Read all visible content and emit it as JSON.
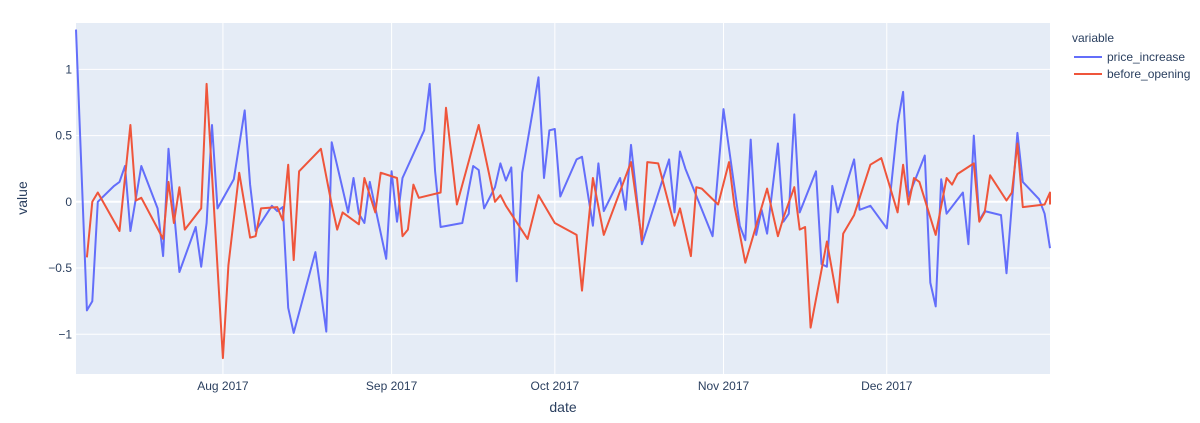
{
  "chart_data": {
    "type": "line",
    "xlabel": "date",
    "ylabel": "value",
    "x_range": [
      "2017-07-05",
      "2017-12-31"
    ],
    "ylim": [
      -1.3,
      1.35
    ],
    "x_ticks": [
      {
        "date": "2017-08-01",
        "label": "Aug 2017"
      },
      {
        "date": "2017-09-01",
        "label": "Sep 2017"
      },
      {
        "date": "2017-10-01",
        "label": "Oct 2017"
      },
      {
        "date": "2017-11-01",
        "label": "Nov 2017"
      },
      {
        "date": "2017-12-01",
        "label": "Dec 2017"
      }
    ],
    "y_ticks": [
      {
        "value": -1,
        "label": "−1"
      },
      {
        "value": -0.5,
        "label": "−0.5"
      },
      {
        "value": 0,
        "label": "0"
      },
      {
        "value": 0.5,
        "label": "0.5"
      },
      {
        "value": 1,
        "label": "1"
      }
    ],
    "grid": true,
    "legend": {
      "title": "variable",
      "position": "top-right"
    },
    "series": [
      {
        "name": "price_increase",
        "color": "#636efa",
        "points": [
          [
            "2017-07-05",
            1.3
          ],
          [
            "2017-07-07",
            -0.82
          ],
          [
            "2017-07-08",
            -0.75
          ],
          [
            "2017-07-09",
            0.0
          ],
          [
            "2017-07-12",
            0.12
          ],
          [
            "2017-07-13",
            0.15
          ],
          [
            "2017-07-14",
            0.27
          ],
          [
            "2017-07-15",
            -0.22
          ],
          [
            "2017-07-17",
            0.27
          ],
          [
            "2017-07-20",
            -0.05
          ],
          [
            "2017-07-21",
            -0.41
          ],
          [
            "2017-07-22",
            0.4
          ],
          [
            "2017-07-24",
            -0.53
          ],
          [
            "2017-07-27",
            -0.19
          ],
          [
            "2017-07-28",
            -0.49
          ],
          [
            "2017-07-29",
            -0.16
          ],
          [
            "2017-07-30",
            0.58
          ],
          [
            "2017-07-31",
            -0.05
          ],
          [
            "2017-08-03",
            0.17
          ],
          [
            "2017-08-05",
            0.69
          ],
          [
            "2017-08-06",
            0.13
          ],
          [
            "2017-08-07",
            -0.22
          ],
          [
            "2017-08-10",
            -0.03
          ],
          [
            "2017-08-11",
            -0.07
          ],
          [
            "2017-08-12",
            -0.04
          ],
          [
            "2017-08-13",
            -0.8
          ],
          [
            "2017-08-14",
            -0.99
          ],
          [
            "2017-08-18",
            -0.38
          ],
          [
            "2017-08-20",
            -0.98
          ],
          [
            "2017-08-21",
            0.45
          ],
          [
            "2017-08-24",
            -0.08
          ],
          [
            "2017-08-25",
            0.18
          ],
          [
            "2017-08-26",
            -0.09
          ],
          [
            "2017-08-27",
            -0.16
          ],
          [
            "2017-08-28",
            0.15
          ],
          [
            "2017-08-31",
            -0.43
          ],
          [
            "2017-09-01",
            0.23
          ],
          [
            "2017-09-02",
            -0.15
          ],
          [
            "2017-09-03",
            0.18
          ],
          [
            "2017-09-07",
            0.54
          ],
          [
            "2017-09-08",
            0.89
          ],
          [
            "2017-09-09",
            0.23
          ],
          [
            "2017-09-10",
            -0.19
          ],
          [
            "2017-09-14",
            -0.16
          ],
          [
            "2017-09-16",
            0.27
          ],
          [
            "2017-09-17",
            0.24
          ],
          [
            "2017-09-18",
            -0.05
          ],
          [
            "2017-09-20",
            0.11
          ],
          [
            "2017-09-21",
            0.29
          ],
          [
            "2017-09-22",
            0.16
          ],
          [
            "2017-09-23",
            0.26
          ],
          [
            "2017-09-24",
            -0.6
          ],
          [
            "2017-09-25",
            0.22
          ],
          [
            "2017-09-28",
            0.94
          ],
          [
            "2017-09-29",
            0.18
          ],
          [
            "2017-09-30",
            0.54
          ],
          [
            "2017-10-01",
            0.55
          ],
          [
            "2017-10-02",
            0.04
          ],
          [
            "2017-10-05",
            0.32
          ],
          [
            "2017-10-06",
            0.34
          ],
          [
            "2017-10-08",
            -0.18
          ],
          [
            "2017-10-09",
            0.29
          ],
          [
            "2017-10-10",
            -0.07
          ],
          [
            "2017-10-13",
            0.18
          ],
          [
            "2017-10-14",
            -0.06
          ],
          [
            "2017-10-15",
            0.43
          ],
          [
            "2017-10-17",
            -0.32
          ],
          [
            "2017-10-22",
            0.32
          ],
          [
            "2017-10-23",
            -0.08
          ],
          [
            "2017-10-24",
            0.38
          ],
          [
            "2017-10-25",
            0.25
          ],
          [
            "2017-10-30",
            -0.26
          ],
          [
            "2017-11-01",
            0.7
          ],
          [
            "2017-11-04",
            -0.18
          ],
          [
            "2017-11-05",
            -0.29
          ],
          [
            "2017-11-06",
            0.47
          ],
          [
            "2017-11-07",
            -0.25
          ],
          [
            "2017-11-08",
            -0.06
          ],
          [
            "2017-11-09",
            -0.24
          ],
          [
            "2017-11-11",
            0.44
          ],
          [
            "2017-11-12",
            -0.15
          ],
          [
            "2017-11-13",
            -0.09
          ],
          [
            "2017-11-14",
            0.66
          ],
          [
            "2017-11-15",
            -0.08
          ],
          [
            "2017-11-18",
            0.23
          ],
          [
            "2017-11-19",
            -0.47
          ],
          [
            "2017-11-20",
            -0.49
          ],
          [
            "2017-11-21",
            0.12
          ],
          [
            "2017-11-22",
            -0.08
          ],
          [
            "2017-11-25",
            0.32
          ],
          [
            "2017-11-26",
            -0.06
          ],
          [
            "2017-11-28",
            -0.03
          ],
          [
            "2017-12-01",
            -0.2
          ],
          [
            "2017-12-03",
            0.59
          ],
          [
            "2017-12-04",
            0.83
          ],
          [
            "2017-12-05",
            0.04
          ],
          [
            "2017-12-08",
            0.35
          ],
          [
            "2017-12-09",
            -0.61
          ],
          [
            "2017-12-10",
            -0.79
          ],
          [
            "2017-12-11",
            0.17
          ],
          [
            "2017-12-12",
            -0.09
          ],
          [
            "2017-12-15",
            0.07
          ],
          [
            "2017-12-16",
            -0.32
          ],
          [
            "2017-12-17",
            0.5
          ],
          [
            "2017-12-18",
            -0.14
          ],
          [
            "2017-12-19",
            -0.07
          ],
          [
            "2017-12-22",
            -0.1
          ],
          [
            "2017-12-23",
            -0.54
          ],
          [
            "2017-12-25",
            0.52
          ],
          [
            "2017-12-26",
            0.15
          ],
          [
            "2017-12-29",
            0.02
          ],
          [
            "2017-12-30",
            -0.09
          ],
          [
            "2017-12-31",
            -0.35
          ]
        ]
      },
      {
        "name": "before_opening",
        "color": "#ef553b",
        "points": [
          [
            "2017-07-07",
            -0.42
          ],
          [
            "2017-07-08",
            0.0
          ],
          [
            "2017-07-09",
            0.07
          ],
          [
            "2017-07-13",
            -0.22
          ],
          [
            "2017-07-15",
            0.58
          ],
          [
            "2017-07-16",
            0.01
          ],
          [
            "2017-07-17",
            0.03
          ],
          [
            "2017-07-21",
            -0.28
          ],
          [
            "2017-07-22",
            0.15
          ],
          [
            "2017-07-23",
            -0.16
          ],
          [
            "2017-07-24",
            0.11
          ],
          [
            "2017-07-25",
            -0.21
          ],
          [
            "2017-07-28",
            -0.05
          ],
          [
            "2017-07-29",
            0.89
          ],
          [
            "2017-08-01",
            -1.18
          ],
          [
            "2017-08-02",
            -0.48
          ],
          [
            "2017-08-04",
            0.22
          ],
          [
            "2017-08-06",
            -0.27
          ],
          [
            "2017-08-07",
            -0.26
          ],
          [
            "2017-08-08",
            -0.05
          ],
          [
            "2017-08-11",
            -0.04
          ],
          [
            "2017-08-12",
            -0.14
          ],
          [
            "2017-08-13",
            0.28
          ],
          [
            "2017-08-14",
            -0.44
          ],
          [
            "2017-08-15",
            0.23
          ],
          [
            "2017-08-19",
            0.4
          ],
          [
            "2017-08-21",
            -0.02
          ],
          [
            "2017-08-22",
            -0.21
          ],
          [
            "2017-08-23",
            -0.08
          ],
          [
            "2017-08-26",
            -0.17
          ],
          [
            "2017-08-27",
            0.18
          ],
          [
            "2017-08-29",
            -0.08
          ],
          [
            "2017-08-30",
            0.22
          ],
          [
            "2017-09-02",
            0.18
          ],
          [
            "2017-09-03",
            -0.26
          ],
          [
            "2017-09-04",
            -0.21
          ],
          [
            "2017-09-05",
            0.13
          ],
          [
            "2017-09-06",
            0.03
          ],
          [
            "2017-09-10",
            0.07
          ],
          [
            "2017-09-11",
            0.71
          ],
          [
            "2017-09-13",
            -0.02
          ],
          [
            "2017-09-17",
            0.58
          ],
          [
            "2017-09-20",
            0.0
          ],
          [
            "2017-09-21",
            0.05
          ],
          [
            "2017-09-22",
            -0.03
          ],
          [
            "2017-09-26",
            -0.28
          ],
          [
            "2017-09-28",
            0.05
          ],
          [
            "2017-10-01",
            -0.16
          ],
          [
            "2017-10-05",
            -0.25
          ],
          [
            "2017-10-06",
            -0.67
          ],
          [
            "2017-10-07",
            -0.23
          ],
          [
            "2017-10-08",
            0.18
          ],
          [
            "2017-10-10",
            -0.25
          ],
          [
            "2017-10-13",
            0.08
          ],
          [
            "2017-10-15",
            0.3
          ],
          [
            "2017-10-17",
            -0.29
          ],
          [
            "2017-10-18",
            0.3
          ],
          [
            "2017-10-20",
            0.29
          ],
          [
            "2017-10-23",
            -0.18
          ],
          [
            "2017-10-24",
            -0.05
          ],
          [
            "2017-10-26",
            -0.41
          ],
          [
            "2017-10-27",
            0.11
          ],
          [
            "2017-10-28",
            0.1
          ],
          [
            "2017-10-31",
            -0.02
          ],
          [
            "2017-11-02",
            0.3
          ],
          [
            "2017-11-03",
            -0.03
          ],
          [
            "2017-11-05",
            -0.46
          ],
          [
            "2017-11-09",
            0.1
          ],
          [
            "2017-11-11",
            -0.26
          ],
          [
            "2017-11-12",
            -0.12
          ],
          [
            "2017-11-14",
            0.11
          ],
          [
            "2017-11-15",
            -0.21
          ],
          [
            "2017-11-16",
            -0.19
          ],
          [
            "2017-11-17",
            -0.95
          ],
          [
            "2017-11-20",
            -0.3
          ],
          [
            "2017-11-22",
            -0.76
          ],
          [
            "2017-11-23",
            -0.24
          ],
          [
            "2017-11-25",
            -0.1
          ],
          [
            "2017-11-28",
            0.28
          ],
          [
            "2017-11-30",
            0.33
          ],
          [
            "2017-12-03",
            -0.08
          ],
          [
            "2017-12-04",
            0.28
          ],
          [
            "2017-12-05",
            -0.02
          ],
          [
            "2017-12-06",
            0.18
          ],
          [
            "2017-12-07",
            0.15
          ],
          [
            "2017-12-10",
            -0.25
          ],
          [
            "2017-12-12",
            0.18
          ],
          [
            "2017-12-13",
            0.13
          ],
          [
            "2017-12-14",
            0.21
          ],
          [
            "2017-12-17",
            0.29
          ],
          [
            "2017-12-18",
            -0.15
          ],
          [
            "2017-12-19",
            -0.08
          ],
          [
            "2017-12-20",
            0.2
          ],
          [
            "2017-12-23",
            0.01
          ],
          [
            "2017-12-24",
            0.07
          ],
          [
            "2017-12-25",
            0.44
          ],
          [
            "2017-12-26",
            -0.04
          ],
          [
            "2017-12-30",
            -0.02
          ],
          [
            "2017-12-31",
            0.07
          ],
          [
            "2018-01-01",
            -0.02
          ]
        ]
      }
    ]
  }
}
